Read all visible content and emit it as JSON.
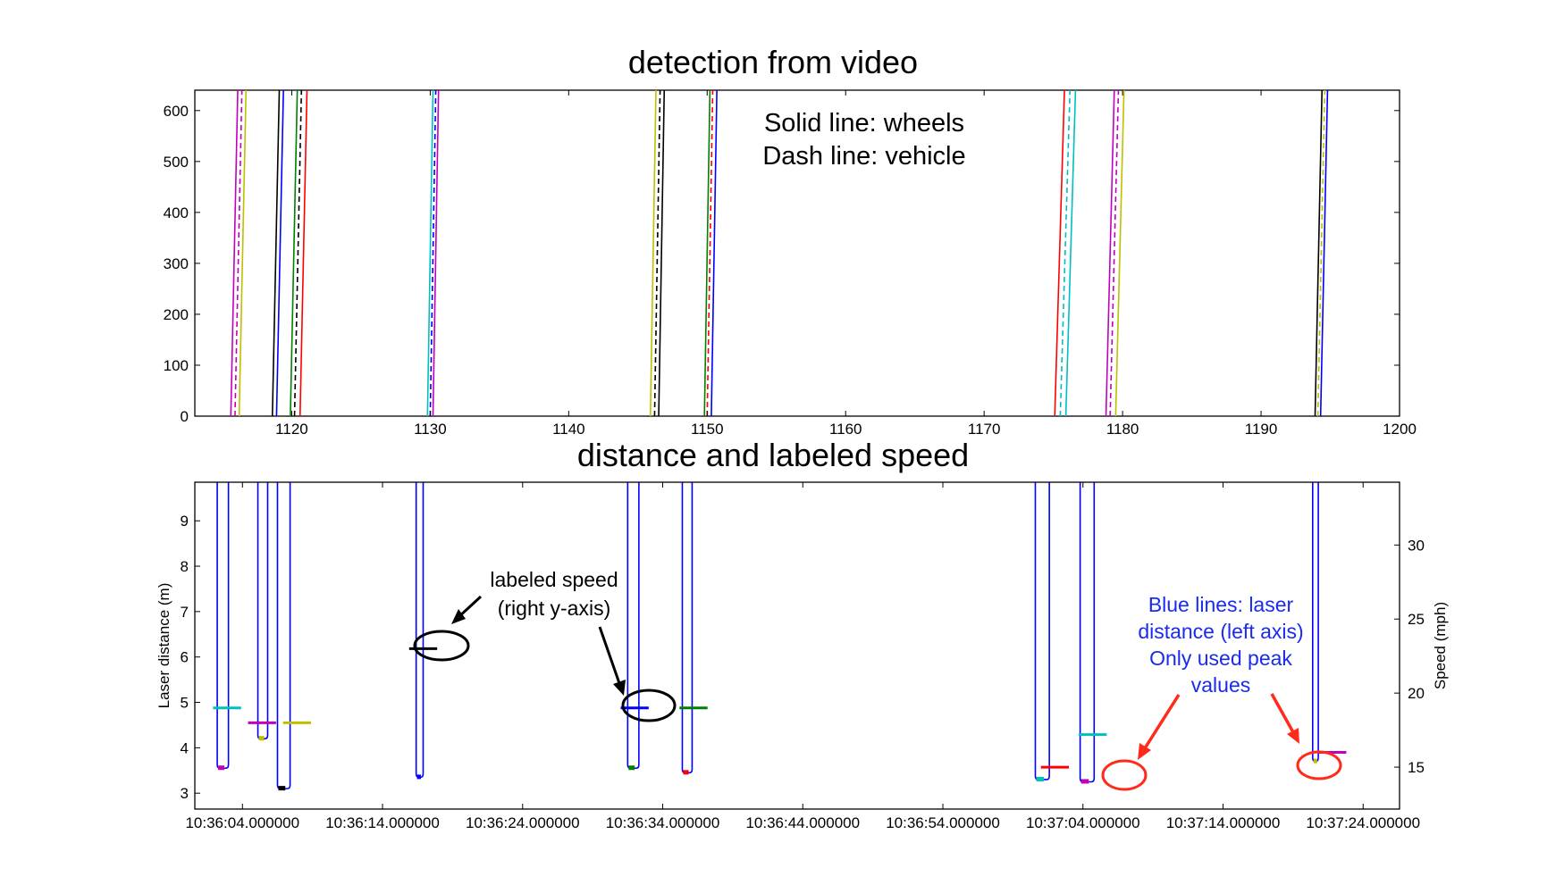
{
  "chart_data": [
    {
      "type": "line",
      "title": "detection from video",
      "xlim": [
        1113,
        1200
      ],
      "ylim": [
        0,
        640
      ],
      "x_ticks": [
        "1120",
        "1130",
        "1140",
        "1150",
        "1160",
        "1170",
        "1180",
        "1190",
        "1200"
      ],
      "y_ticks": [
        "0",
        "100",
        "200",
        "300",
        "400",
        "500",
        "600"
      ],
      "legend": [
        "Solid line: wheels",
        "Dash line: vehicle"
      ],
      "colors": {
        "blue": "#0000ff",
        "green": "#008000",
        "red": "#ff0000",
        "cyan": "#00bfbf",
        "magenta": "#bf00bf",
        "yellow": "#bfbf00",
        "black": "#000000"
      },
      "series": [
        {
          "style": "solid",
          "color": "#bf00bf",
          "x": [
            1115.6,
            1116.1
          ],
          "y": [
            0,
            640
          ]
        },
        {
          "style": "dashed",
          "color": "#bf00bf",
          "x": [
            1115.9,
            1116.4
          ],
          "y": [
            0,
            640
          ]
        },
        {
          "style": "solid",
          "color": "#bfbf00",
          "x": [
            1116.2,
            1116.7
          ],
          "y": [
            0,
            640
          ]
        },
        {
          "style": "solid",
          "color": "#000000",
          "x": [
            1118.6,
            1119.1
          ],
          "y": [
            0,
            640
          ]
        },
        {
          "style": "solid",
          "color": "#0000ff",
          "x": [
            1118.9,
            1119.4
          ],
          "y": [
            0,
            640
          ]
        },
        {
          "style": "solid",
          "color": "#008000",
          "x": [
            1119.9,
            1120.4
          ],
          "y": [
            0,
            640
          ]
        },
        {
          "style": "dashed",
          "color": "#000000",
          "x": [
            1120.2,
            1120.7
          ],
          "y": [
            0,
            640
          ]
        },
        {
          "style": "solid",
          "color": "#ff0000",
          "x": [
            1120.6,
            1121.1
          ],
          "y": [
            0,
            640
          ]
        },
        {
          "style": "solid",
          "color": "#00bfbf",
          "x": [
            1129.8,
            1130.2
          ],
          "y": [
            0,
            640
          ]
        },
        {
          "style": "dashed",
          "color": "#0000ff",
          "x": [
            1130.0,
            1130.4
          ],
          "y": [
            0,
            640
          ]
        },
        {
          "style": "solid",
          "color": "#bf00bf",
          "x": [
            1130.2,
            1130.6
          ],
          "y": [
            0,
            640
          ]
        },
        {
          "style": "solid",
          "color": "#bfbf00",
          "x": [
            1145.9,
            1146.3
          ],
          "y": [
            0,
            640
          ]
        },
        {
          "style": "dashed",
          "color": "#000000",
          "x": [
            1146.2,
            1146.6
          ],
          "y": [
            0,
            640
          ]
        },
        {
          "style": "solid",
          "color": "#000000",
          "x": [
            1146.5,
            1146.9
          ],
          "y": [
            0,
            640
          ]
        },
        {
          "style": "solid",
          "color": "#008000",
          "x": [
            1149.8,
            1150.2
          ],
          "y": [
            0,
            640
          ]
        },
        {
          "style": "dashed",
          "color": "#ff0000",
          "x": [
            1150.0,
            1150.4
          ],
          "y": [
            0,
            640
          ]
        },
        {
          "style": "solid",
          "color": "#0000ff",
          "x": [
            1150.3,
            1150.7
          ],
          "y": [
            0,
            640
          ]
        },
        {
          "style": "solid",
          "color": "#ff0000",
          "x": [
            1175.1,
            1175.8
          ],
          "y": [
            0,
            640
          ]
        },
        {
          "style": "dashed",
          "color": "#00bfbf",
          "x": [
            1175.5,
            1176.2
          ],
          "y": [
            0,
            640
          ]
        },
        {
          "style": "solid",
          "color": "#00bfbf",
          "x": [
            1175.9,
            1176.6
          ],
          "y": [
            0,
            640
          ]
        },
        {
          "style": "solid",
          "color": "#bf00bf",
          "x": [
            1178.8,
            1179.4
          ],
          "y": [
            0,
            640
          ]
        },
        {
          "style": "dashed",
          "color": "#bf00bf",
          "x": [
            1179.1,
            1179.7
          ],
          "y": [
            0,
            640
          ]
        },
        {
          "style": "solid",
          "color": "#bfbf00",
          "x": [
            1179.5,
            1180.1
          ],
          "y": [
            0,
            640
          ]
        },
        {
          "style": "solid",
          "color": "#000000",
          "x": [
            1193.9,
            1194.4
          ],
          "y": [
            0,
            640
          ]
        },
        {
          "style": "dashed",
          "color": "#bfbf00",
          "x": [
            1194.1,
            1194.6
          ],
          "y": [
            0,
            640
          ]
        },
        {
          "style": "solid",
          "color": "#0000ff",
          "x": [
            1194.3,
            1194.8
          ],
          "y": [
            0,
            640
          ]
        }
      ]
    },
    {
      "type": "line",
      "title": "distance and labeled speed",
      "xlabel": "",
      "ylabel": "Laser distance (m)",
      "ylabel_right": "Speed (mph)",
      "xlim": [
        -17.4,
        68.6
      ],
      "ylim": [
        2.65,
        9.85
      ],
      "ylim_right": [
        12.17,
        34.24
      ],
      "x_tick_values": [
        -14,
        -4,
        6,
        16,
        26,
        36,
        46,
        56,
        66
      ],
      "x_ticks": [
        "10:36:04.000000",
        "10:36:14.000000",
        "10:36:24.000000",
        "10:36:34.000000",
        "10:36:44.000000",
        "10:36:54.000000",
        "10:37:04.000000",
        "10:37:14.000000",
        "10:37:24.000000"
      ],
      "x_ticks_data_note": "",
      "y_ticks": [
        3,
        4,
        5,
        6,
        7,
        8,
        9
      ],
      "y_ticks_right": [
        15,
        20,
        25,
        30
      ],
      "laser_color": "#0000ff",
      "laser_dips": [
        {
          "x1": -15.8,
          "x2": -15.0,
          "floor": 3.55,
          "dot": "#bf00bf"
        },
        {
          "x1": -12.9,
          "x2": -12.2,
          "floor": 4.2,
          "dot": "#bfbf00"
        },
        {
          "x1": -11.5,
          "x2": -10.6,
          "floor": 3.1,
          "dot": "#000000"
        },
        {
          "x1": -1.6,
          "x2": -1.1,
          "floor": 3.35,
          "dot": "#0000ff"
        },
        {
          "x1": 13.5,
          "x2": 14.3,
          "floor": 3.55,
          "dot": "#008000"
        },
        {
          "x1": 17.4,
          "x2": 18.1,
          "floor": 3.45,
          "dot": "#ff0000"
        },
        {
          "x1": 42.6,
          "x2": 43.6,
          "floor": 3.3,
          "dot": "#00bfbf"
        },
        {
          "x1": 45.8,
          "x2": 46.8,
          "floor": 3.25,
          "dot": "#bf00bf"
        },
        {
          "x1": 62.4,
          "x2": 62.8,
          "floor": 3.7,
          "dot": "#bfbf00"
        }
      ],
      "speed_marks": [
        {
          "x1": -16.1,
          "x2": -14.1,
          "speed": 19.0,
          "color": "#00bfbf"
        },
        {
          "x1": -13.6,
          "x2": -11.6,
          "speed": 18.0,
          "color": "#bf00bf"
        },
        {
          "x1": -11.1,
          "x2": -9.1,
          "speed": 18.0,
          "color": "#bfbf00"
        },
        {
          "x1": -2.1,
          "x2": -0.1,
          "speed": 23.0,
          "color": "#000000"
        },
        {
          "x1": 13.0,
          "x2": 15.0,
          "speed": 19.0,
          "color": "#0000ff"
        },
        {
          "x1": 17.2,
          "x2": 19.2,
          "speed": 19.0,
          "color": "#008000"
        },
        {
          "x1": 43.0,
          "x2": 45.0,
          "speed": 15.0,
          "color": "#ff0000"
        },
        {
          "x1": 45.7,
          "x2": 47.7,
          "speed": 17.2,
          "color": "#00bfbf"
        },
        {
          "x1": 62.8,
          "x2": 64.8,
          "speed": 16.0,
          "color": "#bf00bf"
        }
      ],
      "annotations": {
        "speed_label_lines": [
          "labeled speed",
          "(right y-axis)"
        ],
        "laser_label_lines": [
          "Blue lines: laser",
          "distance (left axis)",
          "Only used peak",
          "values"
        ]
      }
    }
  ]
}
